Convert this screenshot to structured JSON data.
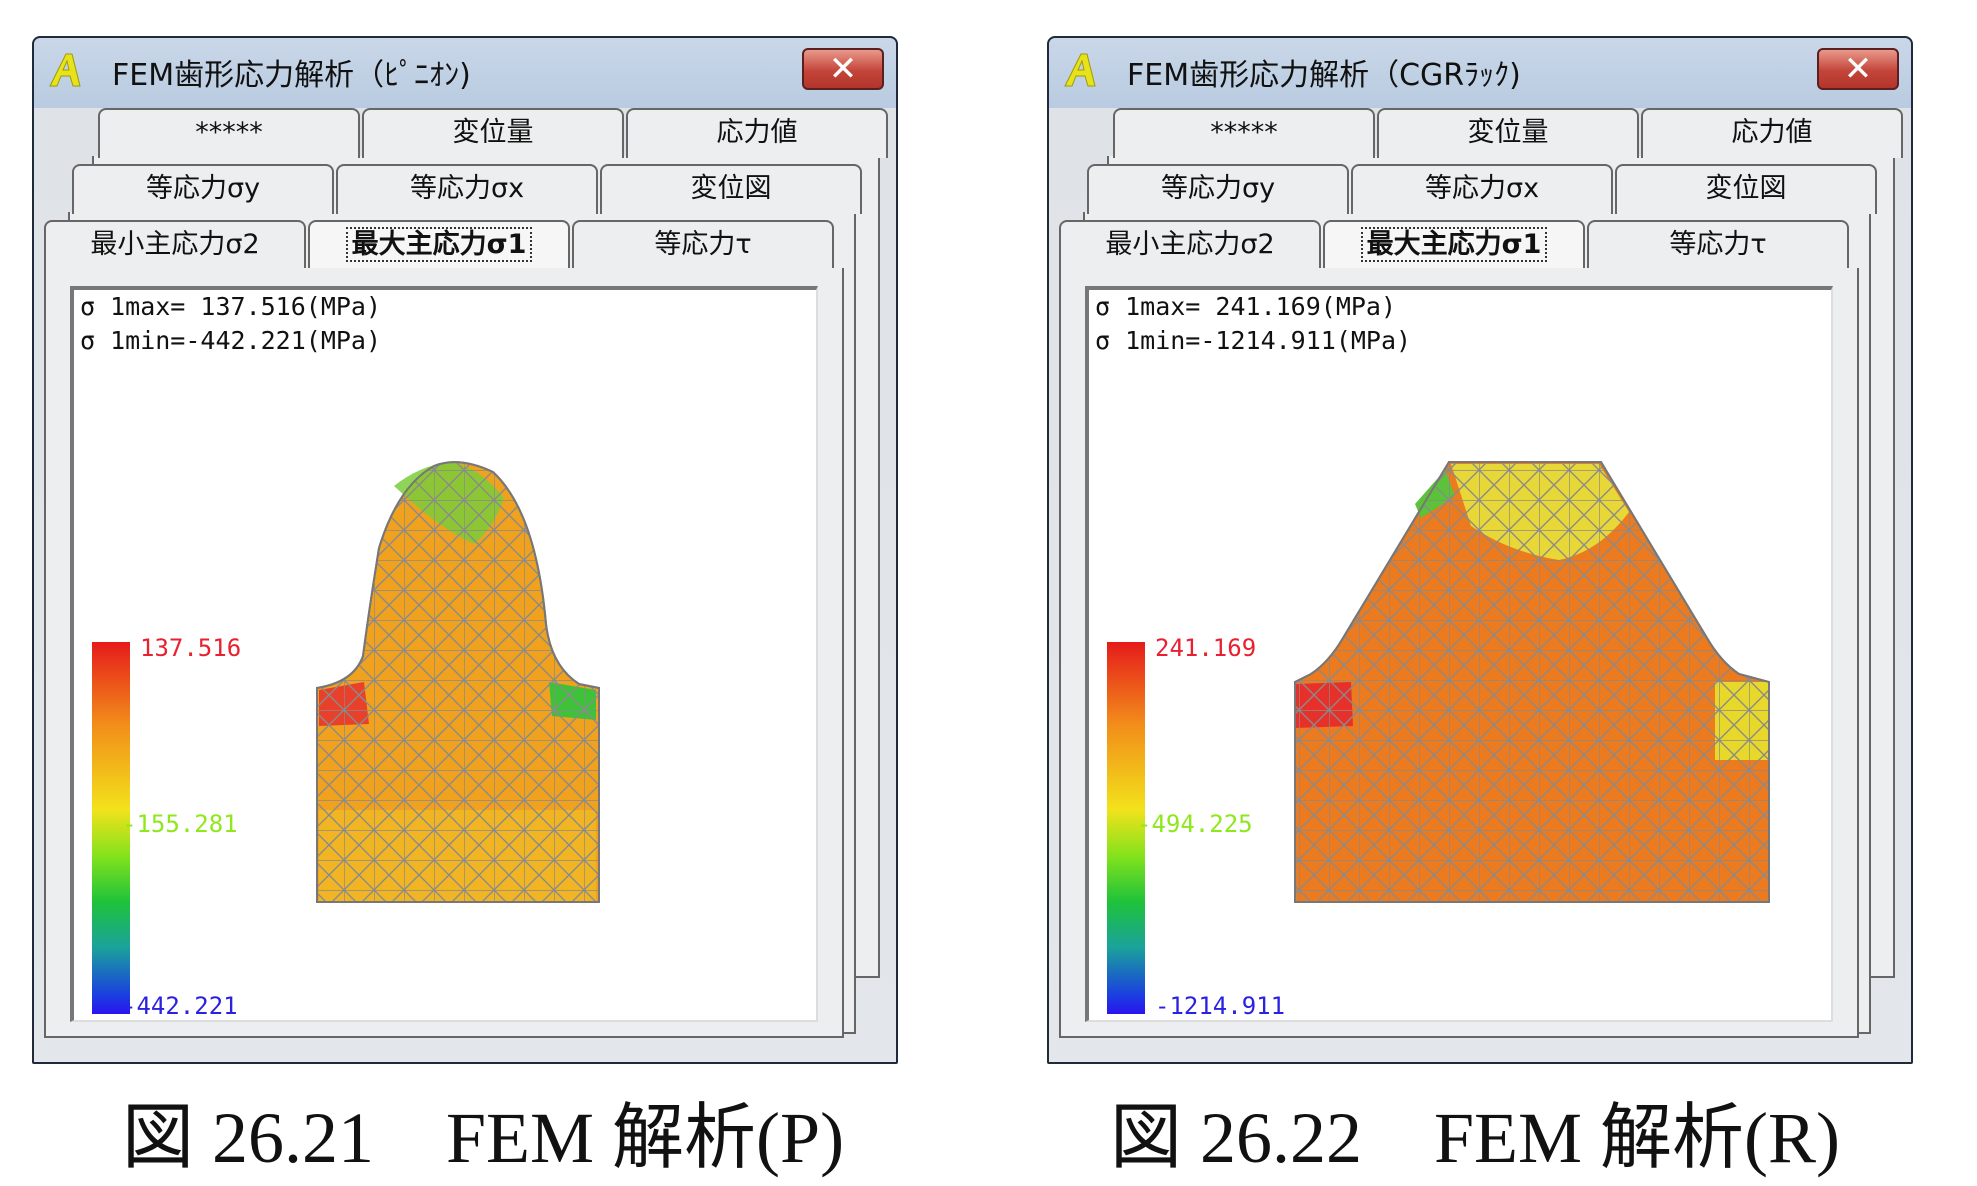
{
  "windows": [
    {
      "title": "FEM歯形応力解析（ﾋﾟﾆｵﾝ)",
      "close_label": "✕",
      "tabs_row1": [
        "*****",
        "変位量",
        "応力値"
      ],
      "tabs_row2": [
        "等応力σy",
        "等応力σx",
        "変位図"
      ],
      "tabs_row3": [
        "最小主応力σ2",
        "最大主応力σ1",
        "等応力τ"
      ],
      "active_tab": "最大主応力σ1",
      "sigma_max_text": "σ 1max= 137.516(MPa)",
      "sigma_min_text": "σ 1min=-442.221(MPa)",
      "legend": {
        "max": "137.516",
        "mid": "-155.281",
        "min": "-442.221"
      },
      "legend_colors": {
        "max": "#e8202f",
        "mid": "#8ee81b",
        "min": "#2a22e0"
      },
      "contour_fill": "#f0a21e"
    },
    {
      "title": "FEM歯形応力解析（CGRﾗｯｸ)",
      "close_label": "✕",
      "tabs_row1": [
        "*****",
        "変位量",
        "応力値"
      ],
      "tabs_row2": [
        "等応力σy",
        "等応力σx",
        "変位図"
      ],
      "tabs_row3": [
        "最小主応力σ2",
        "最大主応力σ1",
        "等応力τ"
      ],
      "active_tab": "最大主応力σ1",
      "sigma_max_text": "σ 1max= 241.169(MPa)",
      "sigma_min_text": "σ 1min=-1214.911(MPa)",
      "legend": {
        "max": "241.169",
        "mid": "-494.225",
        "min": "-1214.911"
      },
      "legend_colors": {
        "max": "#e8202f",
        "mid": "#8ee81b",
        "min": "#2a22e0"
      },
      "contour_fill": "#ec7a1e"
    }
  ],
  "captions": [
    "図 26.21　FEM 解析(P)",
    "図 26.22　FEM 解析(R)"
  ]
}
